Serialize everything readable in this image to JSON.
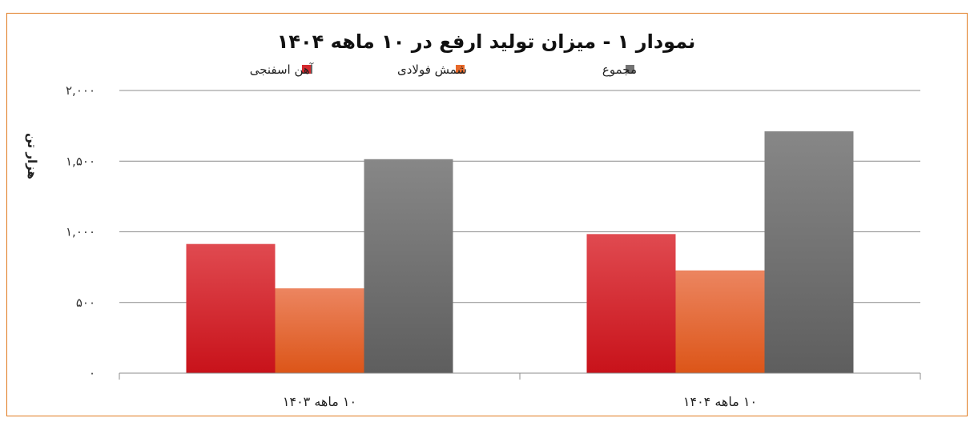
{
  "chart_data": {
    "type": "bar",
    "title": "نمودار ۱ - میزان تولید ارفع در ۱۰ ماهه ۱۴۰۴",
    "ylabel": "هزار تن",
    "xlabel": "",
    "categories": [
      "۱۰ ماهه ۱۴۰۳",
      "۱۰ ماهه ۱۴۰۴"
    ],
    "series": [
      {
        "name": "آهن اسفنجی",
        "values": [
          914,
          984
        ]
      },
      {
        "name": "شمش فولادی",
        "values": [
          600,
          727
        ]
      },
      {
        "name": "مجموع",
        "values": [
          1514,
          1711
        ]
      }
    ],
    "ylim": [
      0,
      2000
    ],
    "yticks": [
      0,
      500,
      1000,
      1500,
      2000
    ],
    "ytick_labels": [
      "۰",
      "۵۰۰",
      "۱,۰۰۰",
      "۱,۵۰۰",
      "۲,۰۰۰"
    ],
    "grid": true,
    "legend": "top",
    "colors": [
      "#d42a2f",
      "#e8692a",
      "#737373"
    ]
  }
}
